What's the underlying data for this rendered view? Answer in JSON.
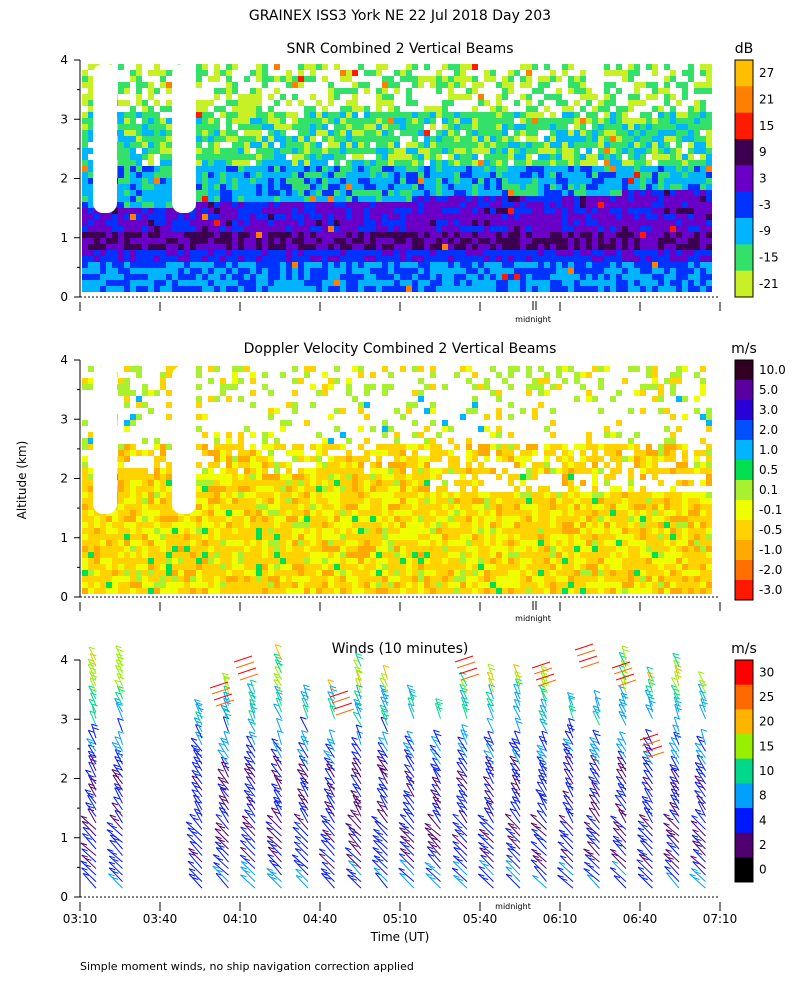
{
  "header": {
    "title": "GRAINEX ISS3 York NE  22 Jul 2018 Day 203",
    "ylabel": "Altitude (km)",
    "xlabel": "Time (UT)",
    "footnote": "Simple moment winds, no ship navigation correction applied",
    "midnight_label": "midnight"
  },
  "chart_data": [
    {
      "type": "heatmap",
      "title": "SNR Combined 2 Vertical Beams",
      "unit": "dB",
      "ylim": [
        0,
        4
      ],
      "yticks": [
        "0",
        "1",
        "2",
        "3",
        "4"
      ],
      "x_range": [
        "03:10",
        "07:10"
      ],
      "colorbar": {
        "labels": [
          "27",
          "21",
          "15",
          "9",
          "3",
          "-3",
          "-9",
          "-15",
          "-21"
        ],
        "colors": [
          "#ffbf00",
          "#ff7f00",
          "#ff1a00",
          "#3d0050",
          "#6a00c8",
          "#0033ff",
          "#00b4ff",
          "#33e06a",
          "#c8f026"
        ]
      }
    },
    {
      "type": "heatmap",
      "title": "Doppler Velocity Combined 2 Vertical Beams",
      "unit": "m/s",
      "ylim": [
        0,
        4
      ],
      "yticks": [
        "0",
        "1",
        "2",
        "3",
        "4"
      ],
      "x_range": [
        "03:10",
        "07:10"
      ],
      "colorbar": {
        "labels": [
          "10.0",
          "5.0",
          "3.0",
          "2.0",
          "1.0",
          "0.5",
          "0.1",
          "-0.1",
          "-0.5",
          "-1.0",
          "-2.0",
          "-3.0"
        ],
        "colors": [
          "#300020",
          "#5a00a0",
          "#2a00d8",
          "#0050ff",
          "#00b4ff",
          "#00e050",
          "#a8f030",
          "#f0ff00",
          "#ffd200",
          "#ffaa00",
          "#ff7000",
          "#ff1800"
        ]
      }
    },
    {
      "type": "scatter",
      "title": "Winds (10 minutes)",
      "unit": "m/s",
      "ylim": [
        0,
        4
      ],
      "yticks": [
        "0",
        "1",
        "2",
        "3",
        "4"
      ],
      "x": [
        "03:10",
        "03:40",
        "04:10",
        "04:40",
        "05:10",
        "05:40",
        "06:10",
        "06:40",
        "07:10"
      ],
      "colorbar": {
        "labels": [
          "30",
          "25",
          "20",
          "15",
          "10",
          "8",
          "4",
          "2",
          "0"
        ],
        "colors": [
          "#ff0000",
          "#ff6a00",
          "#ffb400",
          "#98f000",
          "#00d88c",
          "#00a0ff",
          "#0018ff",
          "#500070",
          "#000000"
        ]
      }
    }
  ]
}
